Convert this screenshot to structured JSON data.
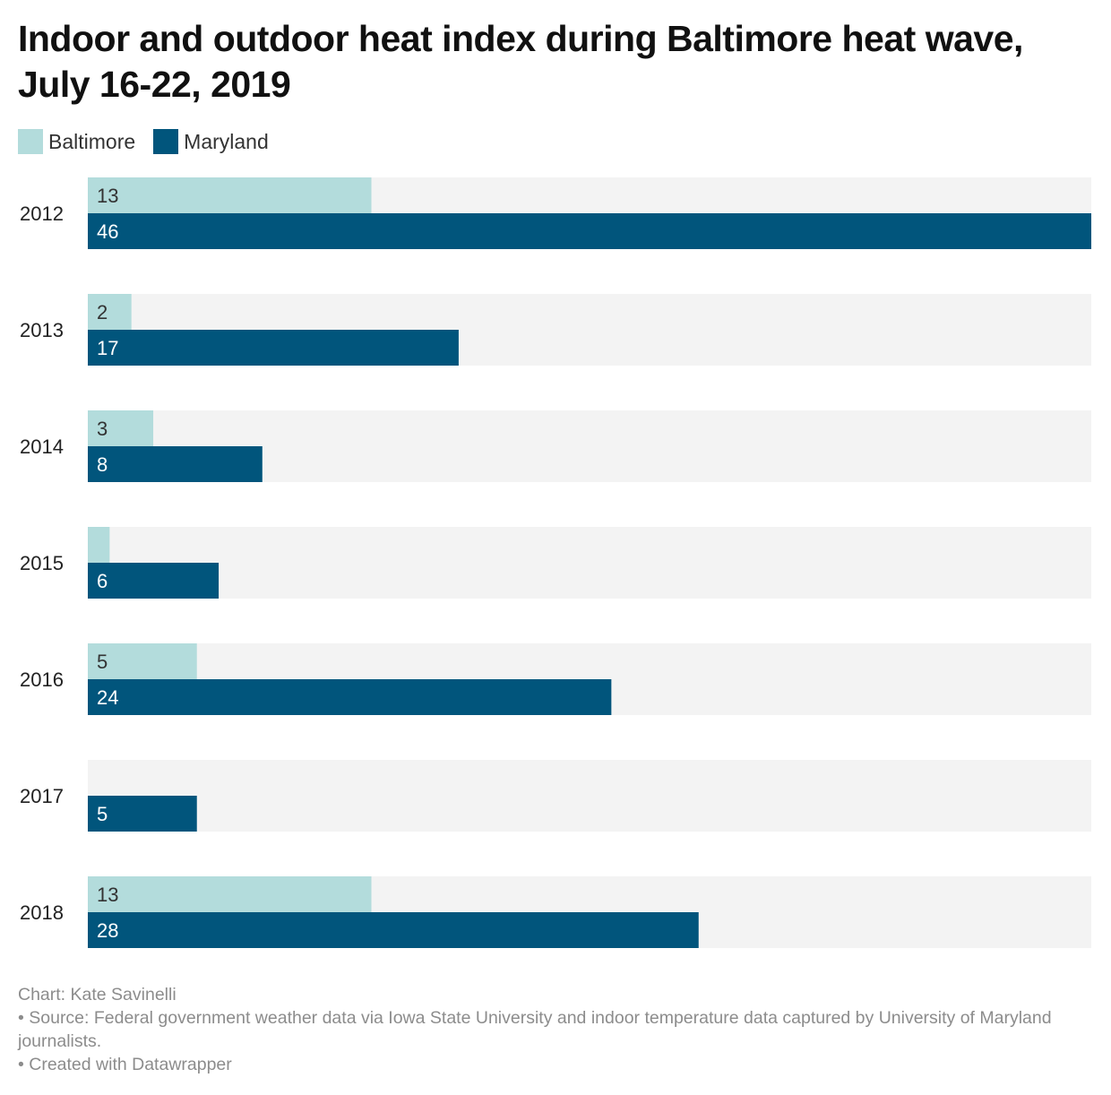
{
  "title": "Indoor and outdoor heat index during Baltimore heat wave, July 16-22, 2019",
  "legend": [
    {
      "name": "Baltimore",
      "color": "#b3dcdc"
    },
    {
      "name": "Maryland",
      "color": "#01557c"
    }
  ],
  "colors": {
    "background_track": "#f3f3f3",
    "light_bar_text": "#333333",
    "dark_bar_text": "#ffffff",
    "category_text": "#222222"
  },
  "chart_data": {
    "type": "bar",
    "orientation": "horizontal",
    "categories": [
      "2012",
      "2013",
      "2014",
      "2015",
      "2016",
      "2017",
      "2018"
    ],
    "series": [
      {
        "name": "Baltimore",
        "values": [
          13,
          2,
          3,
          1,
          5,
          0,
          13
        ],
        "labels": [
          "13",
          "2",
          "3",
          "",
          "5",
          "",
          "13"
        ]
      },
      {
        "name": "Maryland",
        "values": [
          46,
          17,
          8,
          6,
          24,
          5,
          28
        ],
        "labels": [
          "46",
          "17",
          "8",
          "6",
          "24",
          "5",
          "28"
        ]
      }
    ],
    "xlim": [
      0,
      46
    ],
    "grid": false,
    "legend_position": "top-left"
  },
  "footer": {
    "credit": "Chart: Kate Savinelli",
    "source": "• Source: Federal government weather data via Iowa State University and indoor temperature data captured by University of Maryland journalists.",
    "created": "• Created with Datawrapper"
  }
}
